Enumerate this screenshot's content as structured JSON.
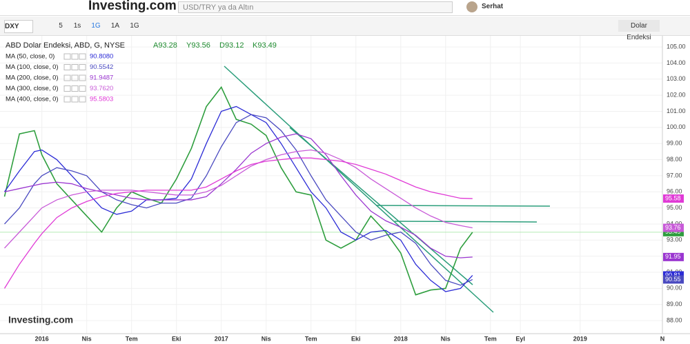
{
  "header": {
    "logo": "Investing.com",
    "search_placeholder": "USD/TRY ya da Altın",
    "user": "Serhat"
  },
  "toolbar": {
    "symbol": "DXY",
    "intervals": [
      "5",
      "1s",
      "1G",
      "1A",
      "1G"
    ],
    "compare": "Dolar Endeksi"
  },
  "chart_data": {
    "type": "line",
    "title": "ABD Dolar Endeksi, ABD, G, NYSE",
    "ohlc": [
      "A93.28",
      "Y93.56",
      "D93.12",
      "K93.49"
    ],
    "watermark": "Investing.com",
    "x": [
      -2.5,
      -1.5,
      -0.5,
      0,
      1,
      2,
      3,
      4,
      5,
      6,
      7,
      8,
      9,
      10,
      11,
      12,
      13,
      14,
      15,
      16,
      17,
      18,
      19,
      20,
      21,
      22,
      23,
      24,
      25,
      26,
      27,
      28,
      28.8
    ],
    "xlim": [
      -2.8,
      41.5
    ],
    "xticks": [
      {
        "value": 0,
        "label": "2016"
      },
      {
        "value": 3,
        "label": "Nis"
      },
      {
        "value": 6,
        "label": "Tem"
      },
      {
        "value": 9,
        "label": "Eki"
      },
      {
        "value": 12,
        "label": "2017"
      },
      {
        "value": 15,
        "label": "Nis"
      },
      {
        "value": 18,
        "label": "Tem"
      },
      {
        "value": 21,
        "label": "Eki"
      },
      {
        "value": 24,
        "label": "2018"
      },
      {
        "value": 27,
        "label": "Nis"
      },
      {
        "value": 30,
        "label": "Tem"
      },
      {
        "value": 32,
        "label": "Eyl"
      },
      {
        "value": 36,
        "label": "2019"
      },
      {
        "value": 41.5,
        "label": "N"
      }
    ],
    "ylim": [
      87.36,
      105.56
    ],
    "yticks": [
      {
        "value": 88,
        "label": "88.00"
      },
      {
        "value": 89,
        "label": "89.00"
      },
      {
        "value": 90,
        "label": "90.00"
      },
      {
        "value": 91,
        "label": "91.00"
      },
      {
        "value": 92,
        "label": "92.00"
      },
      {
        "value": 93,
        "label": "93.00"
      },
      {
        "value": 94,
        "label": "94.00"
      },
      {
        "value": 95,
        "label": "95.00"
      },
      {
        "value": 96,
        "label": "96.00"
      },
      {
        "value": 97,
        "label": "97.00"
      },
      {
        "value": 98,
        "label": "98.00"
      },
      {
        "value": 99,
        "label": "99.00"
      },
      {
        "value": 100,
        "label": "100.00"
      },
      {
        "value": 101,
        "label": "101.00"
      },
      {
        "value": 102,
        "label": "102.00"
      },
      {
        "value": 103,
        "label": "103.00"
      },
      {
        "value": 104,
        "label": "104.00"
      },
      {
        "value": 105,
        "label": "105.00"
      }
    ],
    "grid": true,
    "series": [
      {
        "name": "DXY",
        "color": "#2e9e3e",
        "badge_label": "93.49",
        "values": [
          95.7,
          99.6,
          99.8,
          98.3,
          96.5,
          95.5,
          94.5,
          93.5,
          95.0,
          96.0,
          95.6,
          95.3,
          96.8,
          98.7,
          101.3,
          102.5,
          100.5,
          100.2,
          99.5,
          97.5,
          96.0,
          95.8,
          93.0,
          92.5,
          93.0,
          94.5,
          93.5,
          92.2,
          89.6,
          89.9,
          90.0,
          92.5,
          93.49
        ]
      },
      {
        "name": "MA (50, close, 0)",
        "color": "#2b2bd6",
        "legend_label": "90.8080",
        "badge_label": "90.81",
        "values": [
          96.0,
          97.3,
          98.5,
          98.6,
          98.0,
          97.0,
          96.0,
          95.0,
          94.6,
          94.8,
          95.5,
          95.5,
          95.6,
          96.8,
          99.0,
          101.0,
          101.3,
          100.8,
          100.3,
          99.0,
          97.5,
          96.0,
          95.0,
          93.5,
          93.0,
          93.5,
          93.6,
          93.0,
          91.5,
          90.5,
          89.8,
          90.0,
          90.808
        ]
      },
      {
        "name": "MA (100, close, 0)",
        "color": "#4a4ac0",
        "legend_label": "90.5542",
        "badge_label": "90.55",
        "values": [
          94.0,
          95.0,
          96.5,
          97.0,
          97.5,
          97.3,
          97.0,
          96.0,
          95.5,
          95.2,
          95.0,
          95.3,
          95.3,
          95.6,
          97.0,
          98.8,
          100.3,
          100.8,
          100.6,
          99.8,
          98.6,
          97.0,
          95.5,
          94.5,
          93.5,
          93.0,
          93.3,
          93.5,
          92.8,
          91.5,
          90.5,
          90.2,
          90.5542
        ]
      },
      {
        "name": "MA (200, close, 0)",
        "color": "#9a35d0",
        "legend_label": "91.9487",
        "badge_label": "91.95",
        "values": [
          96.0,
          96.2,
          96.4,
          96.5,
          96.6,
          96.5,
          96.2,
          96.0,
          95.8,
          95.6,
          95.5,
          95.5,
          95.5,
          95.5,
          95.7,
          96.5,
          97.4,
          98.4,
          99.0,
          99.4,
          99.6,
          99.3,
          98.3,
          97.0,
          95.8,
          94.8,
          94.2,
          93.8,
          93.3,
          92.5,
          92.0,
          91.9,
          91.9487
        ]
      },
      {
        "name": "MA (300, close, 0)",
        "color": "#c85ad8",
        "legend_label": "93.7620",
        "badge_label": "93.76",
        "values": [
          92.5,
          93.5,
          94.5,
          95.0,
          95.5,
          95.8,
          96.0,
          96.1,
          96.1,
          96.1,
          96.0,
          95.9,
          95.8,
          95.8,
          96.0,
          96.4,
          97.0,
          97.6,
          98.0,
          98.3,
          98.5,
          98.6,
          98.4,
          98.0,
          97.5,
          96.8,
          96.2,
          95.6,
          95.0,
          94.5,
          94.1,
          93.9,
          93.762
        ]
      },
      {
        "name": "MA (400, close, 0)",
        "color": "#e03ad6",
        "legend_label": "95.5803",
        "badge_label": "95.58",
        "values": [
          90.0,
          91.5,
          92.8,
          93.4,
          94.4,
          95.0,
          95.4,
          95.7,
          95.9,
          96.0,
          96.1,
          96.1,
          96.1,
          96.1,
          96.3,
          96.8,
          97.3,
          97.7,
          97.9,
          98.0,
          98.1,
          98.1,
          98.0,
          97.9,
          97.7,
          97.4,
          97.1,
          96.7,
          96.3,
          96.0,
          95.8,
          95.6,
          95.5803
        ]
      }
    ]
  }
}
